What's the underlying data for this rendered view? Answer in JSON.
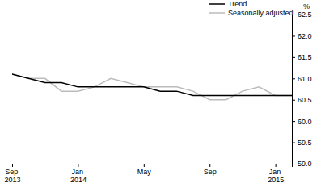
{
  "chart_data": {
    "type": "line",
    "categories": [
      "Sep 2013",
      null,
      null,
      null,
      "Jan 2014",
      null,
      null,
      null,
      "May",
      null,
      null,
      null,
      "Sep",
      null,
      null,
      null,
      "Jan 2015",
      null
    ],
    "series": [
      {
        "name": "Trend",
        "color": "#000000",
        "values": [
          61.1,
          61.0,
          60.9,
          60.9,
          60.8,
          60.8,
          60.8,
          60.8,
          60.8,
          60.7,
          60.7,
          60.6,
          60.6,
          60.6,
          60.6,
          60.6,
          60.6,
          60.6
        ]
      },
      {
        "name": "Seasonally adjusted",
        "color": "#bbbbbb",
        "values": [
          61.1,
          61.0,
          61.0,
          60.7,
          60.7,
          60.8,
          61.0,
          60.9,
          60.8,
          60.8,
          60.8,
          60.7,
          60.5,
          60.5,
          60.7,
          60.8,
          60.6,
          60.6
        ]
      }
    ],
    "y_label": "%",
    "ylim": [
      59.0,
      62.5
    ],
    "yticks": [
      {
        "value": 59.0,
        "label": "59.0"
      },
      {
        "value": 59.5,
        "label": "59.5"
      },
      {
        "value": 60.0,
        "label": "60.0"
      },
      {
        "value": 60.5,
        "label": "60.5"
      },
      {
        "value": 61.0,
        "label": "61.0"
      },
      {
        "value": 61.5,
        "label": "61.5"
      },
      {
        "value": 62.0,
        "label": "62.0"
      },
      {
        "value": 62.5,
        "label": "62.5"
      }
    ],
    "grid": false,
    "legend": "top-right"
  }
}
